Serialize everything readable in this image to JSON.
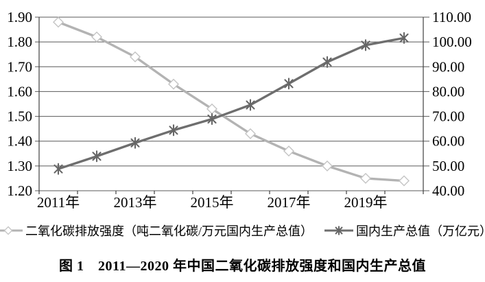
{
  "figure": {
    "caption": "图 1　2011—2020 年中国二氧化碳排放强度和国内生产总值"
  },
  "chart_data": {
    "type": "line",
    "title": "",
    "categories": [
      "2011年",
      "2012年",
      "2013年",
      "2014年",
      "2015年",
      "2016年",
      "2017年",
      "2018年",
      "2019年",
      "2020年"
    ],
    "x_tick_labels": [
      "2011年",
      "2013年",
      "2015年",
      "2017年",
      "2019年"
    ],
    "x_label_every": 2,
    "series": [
      {
        "id": "co2-intensity",
        "name": "二氧化碳排放强度（吨二氧化碳/万元国内生产总值）",
        "axis": "left",
        "marker": "diamond",
        "line_color": "#b3b3b3",
        "marker_color": "#c4c4c4",
        "values": [
          1.88,
          1.82,
          1.74,
          1.63,
          1.53,
          1.43,
          1.36,
          1.3,
          1.25,
          1.24
        ]
      },
      {
        "id": "gdp",
        "name": "国内生产总值（万亿元）",
        "axis": "right",
        "marker": "asterisk",
        "line_color": "#6e6e6e",
        "marker_color": "#666666",
        "values": [
          48.8,
          53.9,
          59.3,
          64.4,
          68.9,
          74.6,
          83.2,
          91.9,
          98.7,
          101.6
        ]
      }
    ],
    "left_axis": {
      "min": 1.2,
      "max": 1.9,
      "step": 0.1,
      "tick_labels": [
        "1.90",
        "1.80",
        "1.70",
        "1.60",
        "1.50",
        "1.40",
        "1.30",
        "1.20"
      ]
    },
    "right_axis": {
      "min": 40,
      "max": 110,
      "step": 10,
      "tick_labels": [
        "110.00",
        "100.00",
        "90.00",
        "80.00",
        "70.00",
        "60.00",
        "50.00",
        "40.00"
      ]
    },
    "grid": true,
    "legend_position": "bottom",
    "colors": {
      "grid": "#595959",
      "axis": "#404040",
      "text": "#000000"
    }
  }
}
